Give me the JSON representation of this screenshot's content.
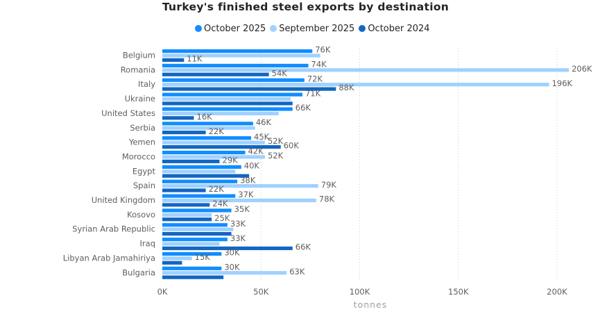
{
  "chart_data": {
    "type": "bar",
    "orientation": "horizontal",
    "title": "Turkey's finished steel exports by destination",
    "xlabel": "tonnes",
    "ylabel": "",
    "xlim": [
      0,
      210000
    ],
    "ticks": [
      {
        "value": 0,
        "label": "0K"
      },
      {
        "value": 50000,
        "label": "50K"
      },
      {
        "value": 100000,
        "label": "100K"
      },
      {
        "value": 150000,
        "label": "150K"
      },
      {
        "value": 200000,
        "label": "200K"
      }
    ],
    "grid": true,
    "legend_position": "top",
    "categories": [
      "Belgium",
      "Romania",
      "Italy",
      "Ukraine",
      "United States",
      "Serbia",
      "Yemen",
      "Morocco",
      "Egypt",
      "Spain",
      "United Kingdom",
      "Kosovo",
      "Syrian Arab Republic",
      "Iraq",
      "Libyan Arab Jamahiriya",
      "Bulgaria"
    ],
    "series": [
      {
        "name": "October 2025",
        "color": "#118DFF",
        "values": [
          76000,
          74000,
          72000,
          71000,
          66000,
          46000,
          45000,
          42000,
          40000,
          38000,
          37000,
          35000,
          33000,
          33000,
          30000,
          30000
        ],
        "labels": [
          "76K",
          "74K",
          "72K",
          "71K",
          "66K",
          "46K",
          "45K",
          "42K",
          "40K",
          "38K",
          "37K",
          "35K",
          "33K",
          "33K",
          "30K",
          "30K"
        ]
      },
      {
        "name": "September 2025",
        "color": "#A0D1FF",
        "values": [
          80000,
          206000,
          196000,
          65000,
          59000,
          47000,
          52000,
          52000,
          37000,
          79000,
          78000,
          25000,
          36000,
          29000,
          15000,
          63000
        ],
        "labels": [
          "",
          "206K",
          "196K",
          "",
          "",
          "",
          "52K",
          "52K",
          "",
          "79K",
          "78K",
          "",
          "",
          "",
          "15K",
          "63K"
        ]
      },
      {
        "name": "October 2024",
        "color": "#1366C2",
        "values": [
          11000,
          54000,
          88000,
          66000,
          16000,
          22000,
          60000,
          29000,
          44000,
          22000,
          24000,
          25000,
          35000,
          66000,
          10000,
          31000
        ],
        "labels": [
          "11K",
          "54K",
          "88K",
          "",
          "16K",
          "22K",
          "60K",
          "29K",
          "",
          "22K",
          "24K",
          "25K",
          "",
          "66K",
          "",
          ""
        ]
      }
    ]
  }
}
